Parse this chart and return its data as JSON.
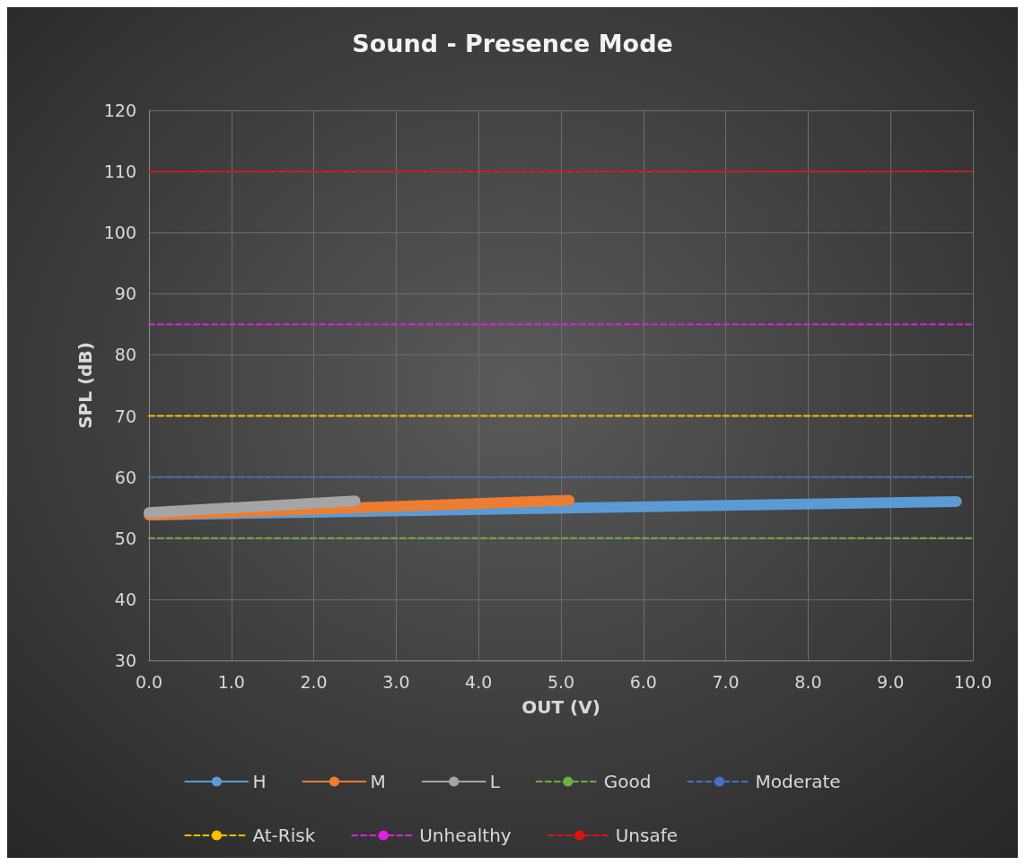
{
  "chart_data": {
    "type": "line",
    "title": "Sound - Presence Mode",
    "xlabel": "OUT (V)",
    "ylabel": "SPL (dB)",
    "series": [
      {
        "name": "H",
        "color": "#5b9bd5",
        "x": [
          0,
          9.8
        ],
        "values": [
          53.8,
          56
        ]
      },
      {
        "name": "M",
        "color": "#ed7d31",
        "x": [
          0,
          5.1
        ],
        "values": [
          53.8,
          56.2
        ]
      },
      {
        "name": "L",
        "color": "#a5a5a5",
        "x": [
          0,
          2.5
        ],
        "values": [
          54.2,
          56.1
        ]
      },
      {
        "name": "Good",
        "color": "#70ad47",
        "x": [
          0,
          10
        ],
        "values": [
          50,
          50
        ],
        "line_style": "dashed"
      },
      {
        "name": "Moderate",
        "color": "#4472c4",
        "x": [
          0,
          10
        ],
        "values": [
          60,
          60
        ],
        "line_style": "dashed"
      },
      {
        "name": "At-Risk",
        "color": "#ffc000",
        "x": [
          0,
          10
        ],
        "values": [
          70,
          70
        ],
        "line_style": "dashed"
      },
      {
        "name": "Unhealthy",
        "color": "#e020e0",
        "x": [
          0,
          10
        ],
        "values": [
          85,
          85
        ],
        "line_style": "dashed"
      },
      {
        "name": "Unsafe",
        "color": "#e01010",
        "x": [
          0,
          10
        ],
        "values": [
          110,
          110
        ],
        "line_style": "dashed"
      }
    ],
    "xlim": [
      0,
      10
    ],
    "xticks": [
      {
        "value": 0,
        "label": "0.0"
      },
      {
        "value": 1,
        "label": "1.0"
      },
      {
        "value": 2,
        "label": "2.0"
      },
      {
        "value": 3,
        "label": "3.0"
      },
      {
        "value": 4,
        "label": "4.0"
      },
      {
        "value": 5,
        "label": "5.0"
      },
      {
        "value": 6,
        "label": "6.0"
      },
      {
        "value": 7,
        "label": "7.0"
      },
      {
        "value": 8,
        "label": "8.0"
      },
      {
        "value": 9,
        "label": "9.0"
      },
      {
        "value": 10,
        "label": "10.0"
      }
    ],
    "ylim": [
      30,
      120
    ],
    "yticks": [
      30,
      40,
      50,
      60,
      70,
      80,
      90,
      100,
      110,
      120
    ],
    "grid": true,
    "legend": "bottom",
    "marker": "none",
    "line_style": "solid"
  }
}
